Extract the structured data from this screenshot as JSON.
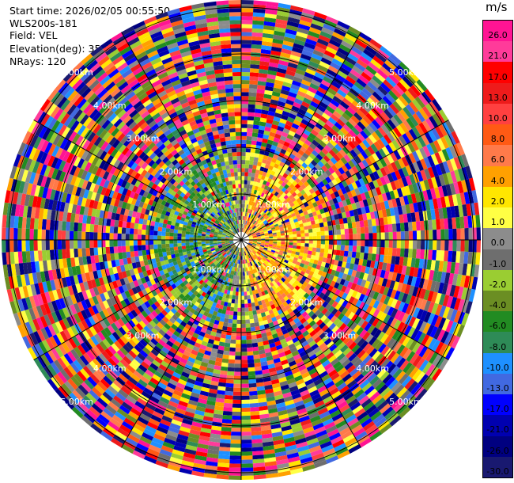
{
  "info": {
    "start_time": "Start time: 2026/02/05 00:55:50",
    "instrument": "WLS200s-181",
    "field": "Field: VEL",
    "elevation": "Elevation(deg): 35.00",
    "nrays": "NRays: 120"
  },
  "chart_data": {
    "type": "heatmap",
    "projection": "polar-ppi",
    "field": "VEL",
    "n_rays": 120,
    "elevation_deg": 35.0,
    "range_rings_km": [
      "1.00km",
      "2.00km",
      "3.00km",
      "4.00km",
      "5.00km"
    ],
    "colorbar": {
      "unit": "m/s",
      "ticks": [
        "26.0",
        "21.0",
        "17.0",
        "13.0",
        "10.0",
        "8.0",
        "6.0",
        "4.0",
        "2.0",
        "1.0",
        "0.0",
        "-1.0",
        "-2.0",
        "-4.0",
        "-6.0",
        "-8.0",
        "-10.0",
        "-13.0",
        "-17.0",
        "-21.0",
        "-26.0",
        "-30.0"
      ],
      "colors": [
        "#ff1493",
        "#ff3b9a",
        "#ff0000",
        "#ee1b1b",
        "#ff4040",
        "#ff5a14",
        "#ff7a4a",
        "#ffa000",
        "#ffe600",
        "#ffff44",
        "#8c8c8c",
        "#6e6e6e",
        "#9acd32",
        "#6b8e23",
        "#228b22",
        "#2e8b57",
        "#1e90ff",
        "#4169e1",
        "#0000ff",
        "#0000b0",
        "#000080",
        "#191970"
      ]
    }
  }
}
